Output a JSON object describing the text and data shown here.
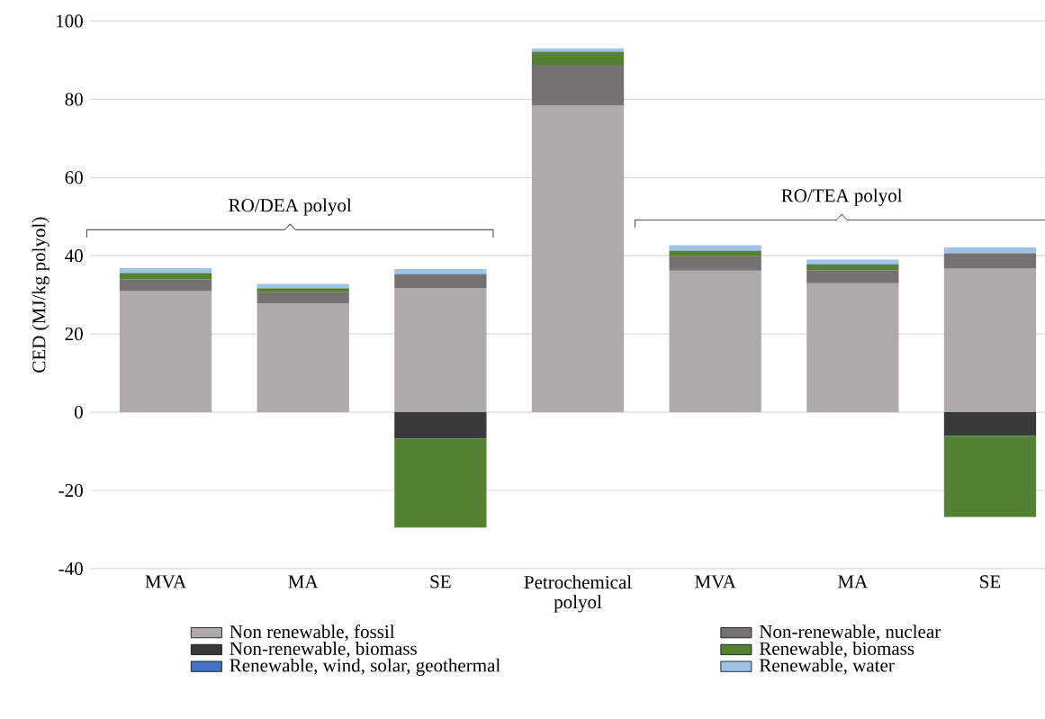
{
  "chart_data": {
    "type": "bar",
    "stacked": true,
    "ylabel": "CED (MJ/kg polyol)",
    "categories": [
      "MVA",
      "MA",
      "SE",
      "Petrochemical polyol",
      "MVA",
      "MA",
      "SE"
    ],
    "series": [
      {
        "name": "Non renewable, fossil",
        "color": "#aeaaaa",
        "values": [
          31.1,
          27.8,
          31.7,
          78.4,
          36.2,
          33.0,
          36.7
        ]
      },
      {
        "name": "Non-renewable, nuclear",
        "color": "#767171",
        "values": [
          2.9,
          2.9,
          3.6,
          10.4,
          3.7,
          3.3,
          4.0
        ]
      },
      {
        "name": "Non-renewable, biomass",
        "color": "#3a3838",
        "values": [
          0,
          0,
          -6.7,
          0,
          0,
          0,
          -6.1
        ]
      },
      {
        "name": "Renewable, biomass",
        "color": "#548235",
        "values": [
          1.6,
          1.0,
          -22.8,
          3.4,
          1.4,
          1.5,
          -20.7
        ]
      },
      {
        "name": "Renewable, wind, solar, geothermal",
        "color": "#4472c4",
        "values": [
          null,
          null,
          0.1,
          null,
          0.1,
          0.1,
          null
        ]
      },
      {
        "name": "Renewable, water",
        "color": "#9dc3e6",
        "values": [
          1.2,
          1.1,
          1.2,
          0.8,
          1.3,
          1.1,
          1.4
        ]
      }
    ],
    "ylim": [
      -40,
      100
    ],
    "yticks": [
      -40,
      -20,
      0,
      20,
      40,
      60,
      80,
      100
    ],
    "grid": "y",
    "legend": "bottom",
    "annotations": [
      "RO/DEA polyol",
      "RO/TEA polyol"
    ]
  }
}
